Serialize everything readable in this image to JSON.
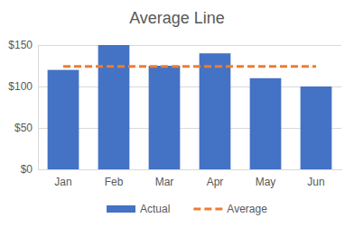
{
  "chart_data": {
    "type": "bar",
    "title": "Average Line",
    "categories": [
      "Jan",
      "Feb",
      "Mar",
      "Apr",
      "May",
      "Jun"
    ],
    "series": [
      {
        "name": "Actual",
        "type": "bar",
        "color": "#4472c4",
        "values": [
          120,
          150,
          125,
          140,
          110,
          100
        ]
      },
      {
        "name": "Average",
        "type": "line",
        "color": "#ed7d31",
        "line_style": "dashed",
        "values": [
          124.17,
          124.17,
          124.17,
          124.17,
          124.17,
          124.17
        ]
      }
    ],
    "ylim": [
      0,
      150
    ],
    "yticks": [
      {
        "value": 0,
        "label": "$0"
      },
      {
        "value": 50,
        "label": "$50"
      },
      {
        "value": 100,
        "label": "$100"
      },
      {
        "value": 150,
        "label": "$150"
      }
    ],
    "grid": true,
    "legend": "bottom"
  }
}
